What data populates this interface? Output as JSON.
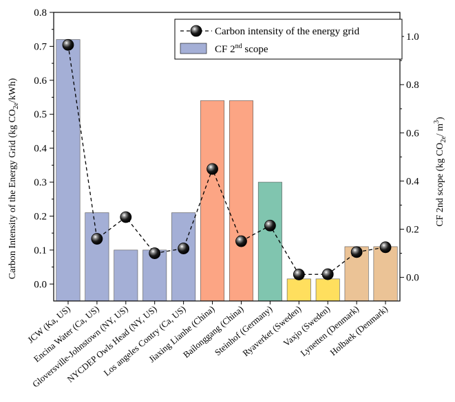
{
  "chart_data": {
    "type": "bar",
    "categories": [
      "JCW (Ka, US)",
      "Encina Water (Ca, US)",
      "Gloversville-Johnstown (NY, US)",
      "NYCDEP Owls Head (NY, US)",
      "Los angeles Contry (Ca, US)",
      "Jiaxing Lianhe (China)",
      "Bailonggang (China)",
      "Steinhof (Germany)",
      "Ryaverket (Sweden)",
      "Vaxjo (Sweden)",
      "Lynetten (Denmark)",
      "Holbaek (Denmark)"
    ],
    "series": [
      {
        "name": "CF 2nd scope",
        "kind": "bar",
        "axis": "left",
        "values": [
          0.72,
          0.21,
          0.1,
          0.1,
          0.21,
          0.54,
          0.54,
          0.3,
          0.015,
          0.015,
          0.11,
          0.11
        ],
        "colors": [
          "#a4afd6",
          "#a4afd6",
          "#a4afd6",
          "#a4afd6",
          "#a4afd6",
          "#fca584",
          "#fca584",
          "#80c5af",
          "#ffdf5e",
          "#ffdf5e",
          "#ebc396",
          "#ebc396"
        ]
      },
      {
        "name": "Carbon intensity of the energy grid",
        "kind": "line",
        "axis": "right",
        "values": [
          0.965,
          0.16,
          0.25,
          0.1,
          0.12,
          0.45,
          0.15,
          0.215,
          0.012,
          0.013,
          0.105,
          0.125
        ]
      }
    ],
    "ylabel": "Carbon Intensity of the Energy Grid (kg CO2e/kWh)",
    "y2label": "CF 2nd scope (kg CO2e/ m3)",
    "ylim": [
      -0.05,
      0.8
    ],
    "y2lim": [
      -0.098,
      1.1
    ],
    "yticks": [
      "0.0",
      "0.1",
      "0.2",
      "0.3",
      "0.4",
      "0.5",
      "0.6",
      "0.7",
      "0.8"
    ],
    "y2ticks": [
      "0.0",
      "0.2",
      "0.4",
      "0.6",
      "0.8",
      "1.0"
    ],
    "legend": {
      "position": "top-right",
      "line_label": "Carbon intensity of the energy grid",
      "bar_label_main": "CF 2",
      "bar_label_sup": "nd",
      "bar_label_tail": " scope"
    },
    "grid": false
  }
}
